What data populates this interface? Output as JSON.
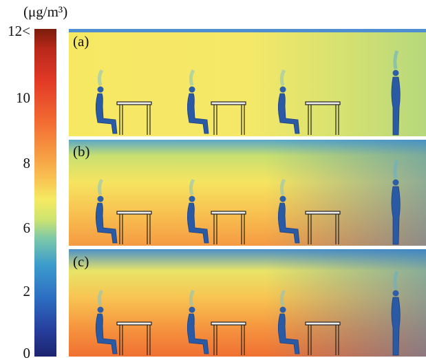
{
  "colorbar": {
    "unit": "(μg/m³)",
    "ticks": [
      "12<",
      "10",
      "8",
      "6",
      "2",
      "0"
    ]
  },
  "panels": [
    {
      "label": "(a)"
    },
    {
      "label": "(b)"
    },
    {
      "label": "(c)"
    }
  ]
}
